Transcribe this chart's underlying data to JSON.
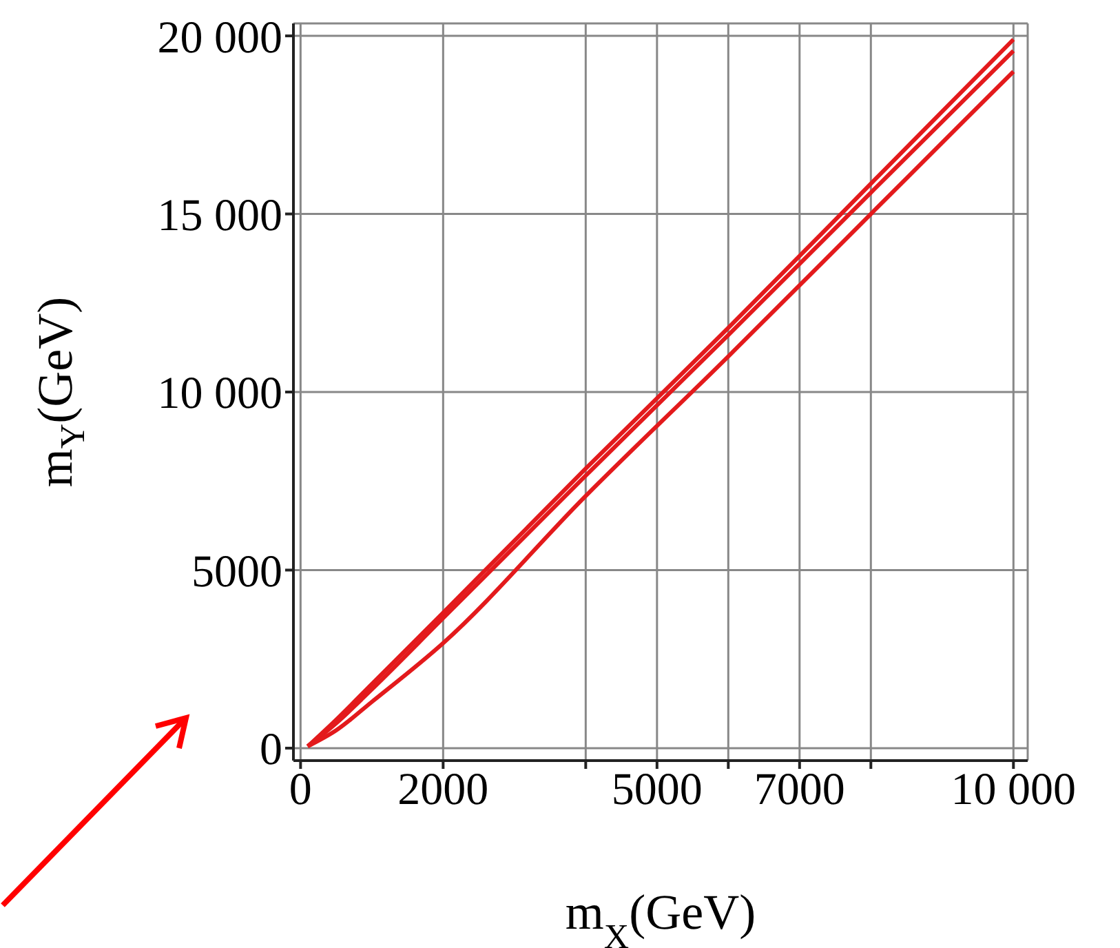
{
  "chart_data": {
    "type": "line",
    "xlabel": "m$_{X}$(GeV)",
    "ylabel": "m$_{Y}$(GeV)",
    "xlim": [
      -100,
      10200
    ],
    "ylim": [
      -350,
      20350
    ],
    "xticks": [
      0,
      2000,
      {
        "value": 4000,
        "label": null
      },
      5000,
      {
        "value": 6000,
        "label": null
      },
      7000,
      {
        "value": 8000,
        "label": null
      },
      {
        "value": 10000,
        "label": "10 000"
      }
    ],
    "yticks": [
      0,
      5000,
      {
        "value": 10000,
        "label": "10 000"
      },
      {
        "value": 15000,
        "label": "15 000"
      },
      {
        "value": 20000,
        "label": "20 000"
      }
    ],
    "x": [
      100,
      500,
      1000,
      2000,
      4000,
      6000,
      8000,
      10000
    ],
    "series": [
      {
        "color": "#e31a1c",
        "values": [
          50,
          800,
          1800,
          3800,
          7850,
          11800,
          15850,
          19900
        ]
      },
      {
        "color": "#e31a1c",
        "values": [
          50,
          700,
          1650,
          3650,
          7650,
          11600,
          15600,
          19580
        ]
      },
      {
        "color": "#e31a1c",
        "values": [
          50,
          500,
          1300,
          2950,
          7080,
          11000,
          15000,
          19000
        ]
      }
    ],
    "grid": true,
    "marker": "none",
    "line_style": "solid"
  }
}
